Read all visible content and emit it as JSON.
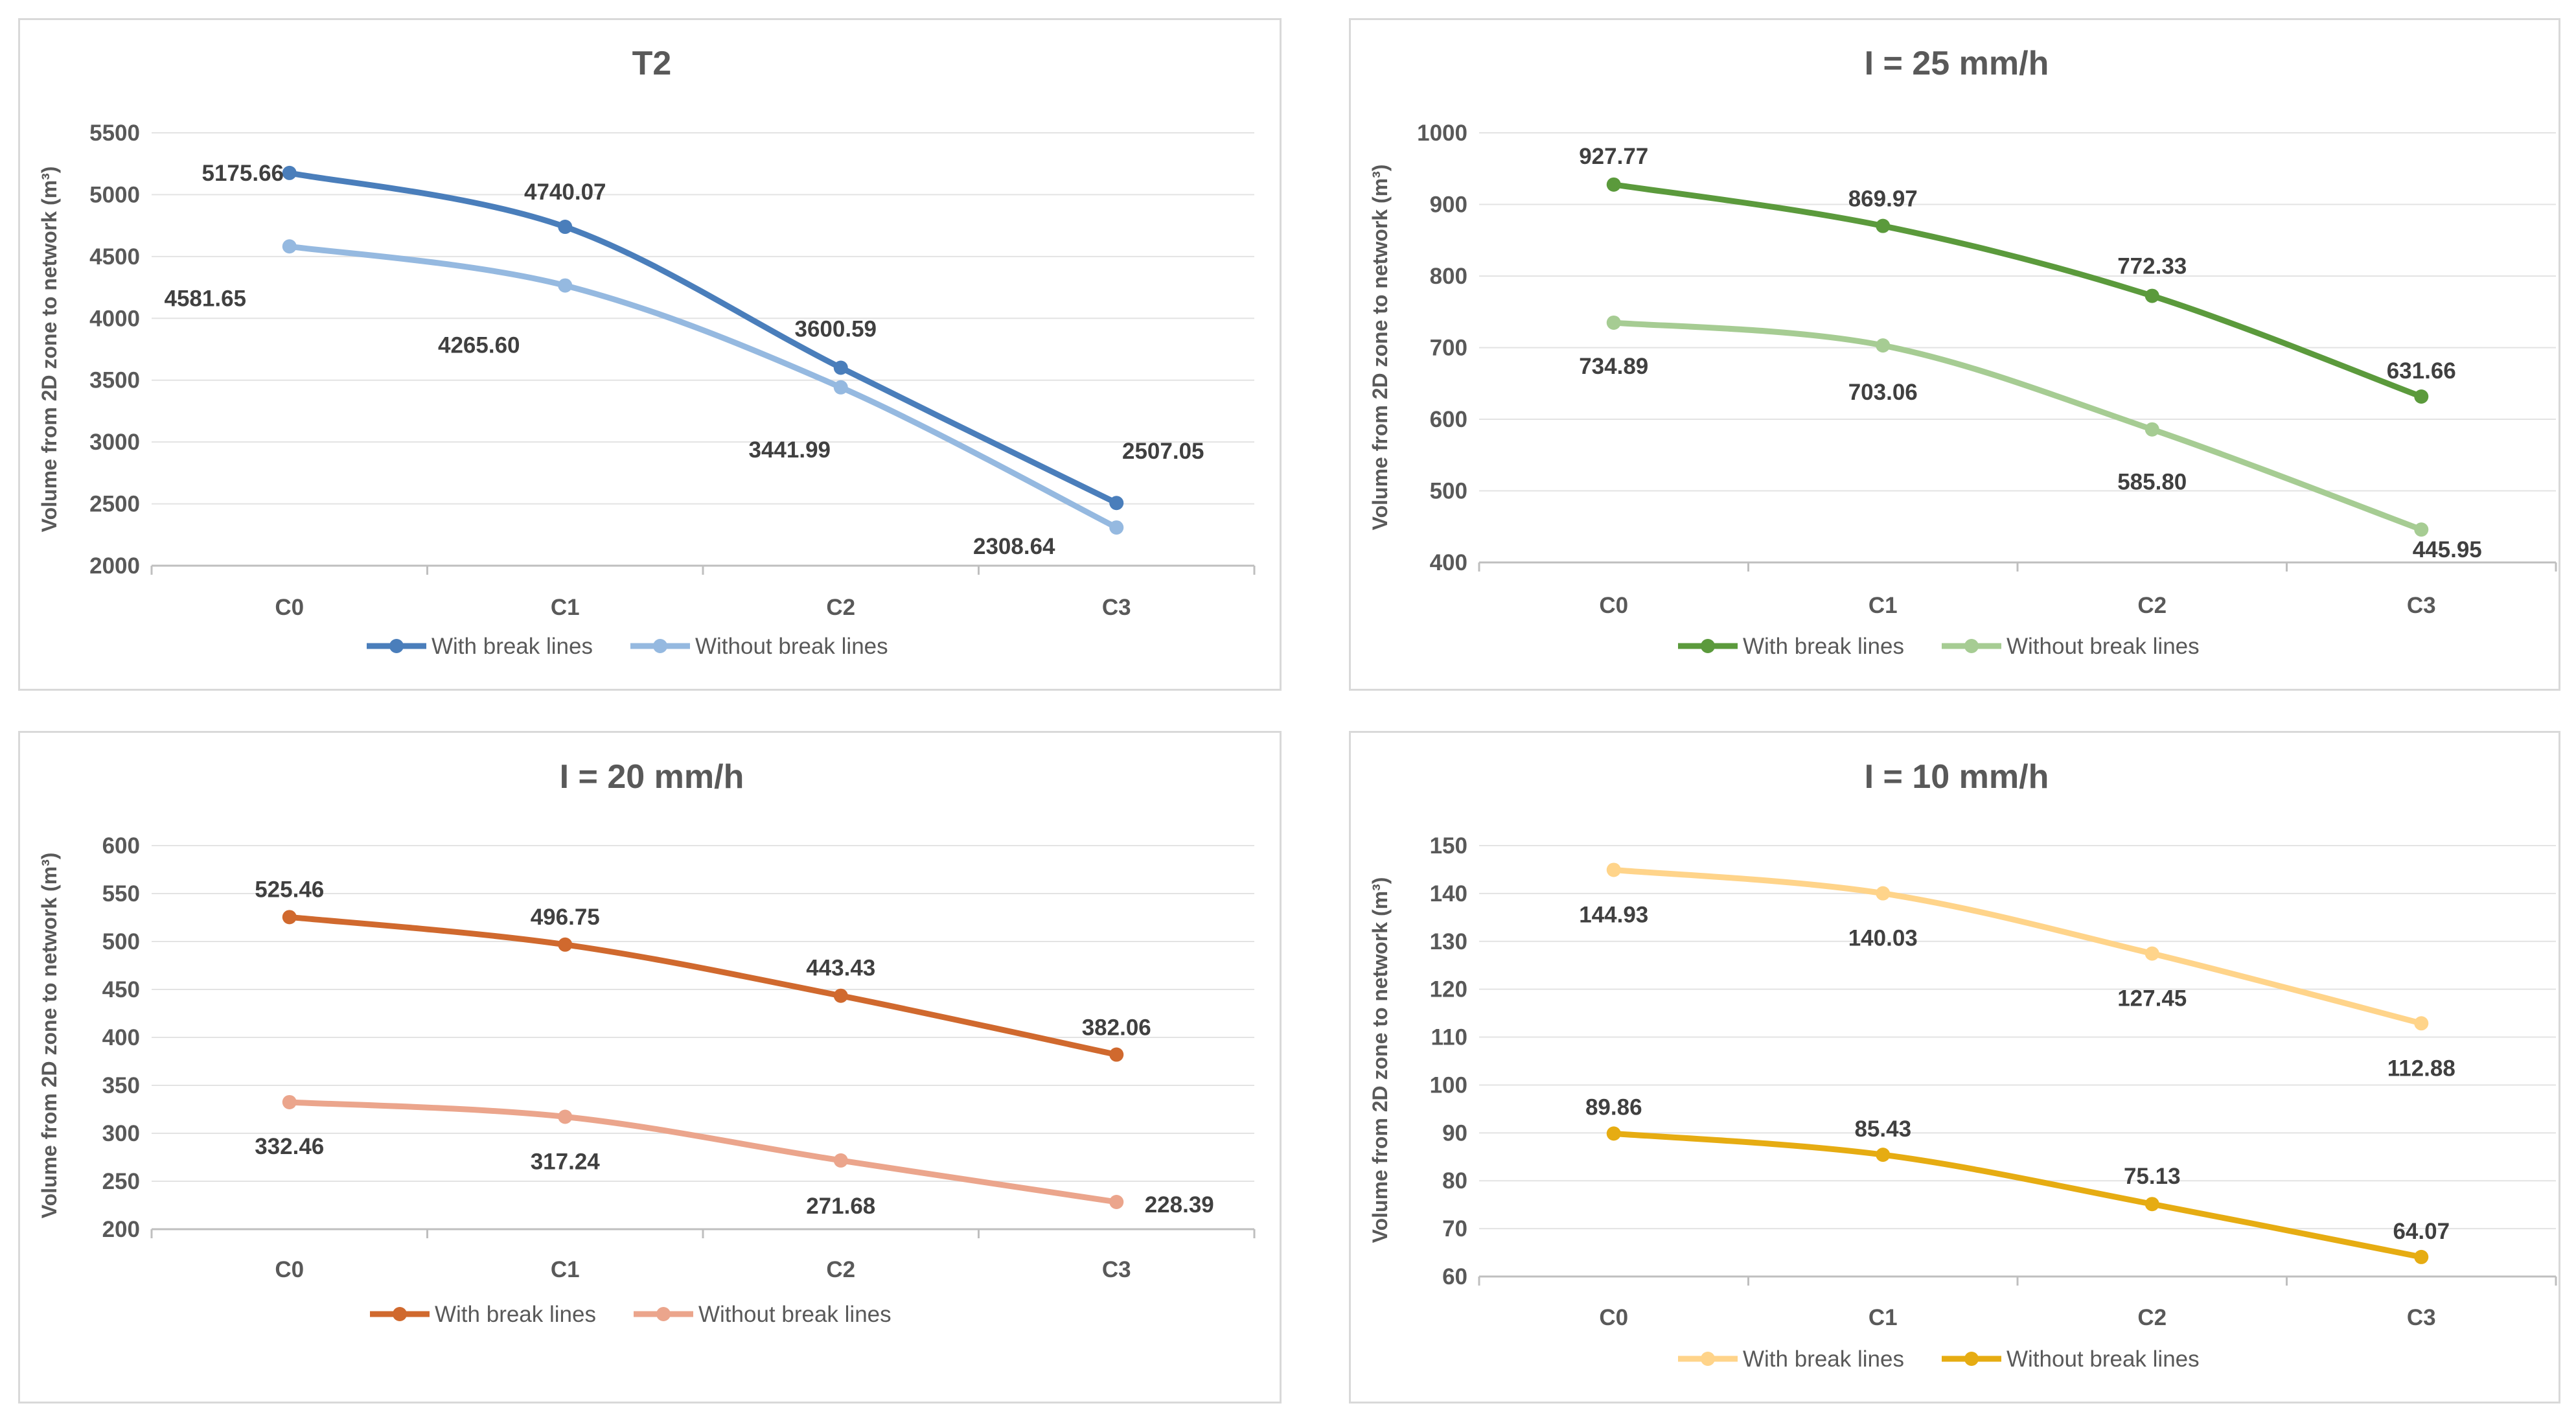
{
  "chart_data": [
    {
      "type": "line",
      "title": "T2",
      "xlabel": "",
      "ylabel": "Volume from 2D zone to network (m³)",
      "categories": [
        "C0",
        "C1",
        "C2",
        "C3"
      ],
      "ylim": [
        2000,
        5500
      ],
      "yticks": [
        2000,
        2500,
        3000,
        3500,
        4000,
        4500,
        5000,
        5500
      ],
      "grid": true,
      "legend": "bottom",
      "smooth": true,
      "series": [
        {
          "name": "With break lines",
          "color": "#4a7ebb",
          "values": [
            5175.66,
            4740.07,
            3600.59,
            2507.05
          ],
          "labels": [
            "5175.66",
            "4740.07",
            "3600.59",
            "2507.05"
          ]
        },
        {
          "name": "Without break lines",
          "color": "#95b9e0",
          "values": [
            4581.65,
            4265.6,
            3441.99,
            2308.64
          ],
          "labels": [
            "4581.65",
            "4265.60",
            "3441.99",
            "2308.64"
          ]
        }
      ]
    },
    {
      "type": "line",
      "title": "I = 25 mm/h",
      "xlabel": "",
      "ylabel": "Volume from 2D zone to network (m³)",
      "categories": [
        "C0",
        "C1",
        "C2",
        "C3"
      ],
      "ylim": [
        400,
        1000
      ],
      "yticks": [
        400,
        500,
        600,
        700,
        800,
        900,
        1000
      ],
      "grid": true,
      "legend": "bottom",
      "smooth": true,
      "series": [
        {
          "name": "With break lines",
          "color": "#5b9a3c",
          "values": [
            927.77,
            869.97,
            772.33,
            631.66
          ],
          "labels": [
            "927.77",
            "869.97",
            "772.33",
            "631.66"
          ]
        },
        {
          "name": "Without break lines",
          "color": "#a6cc93",
          "values": [
            734.89,
            703.06,
            585.8,
            445.95
          ],
          "labels": [
            "734.89",
            "703.06",
            "585.80",
            "445.95"
          ]
        }
      ]
    },
    {
      "type": "line",
      "title": "I = 20 mm/h",
      "xlabel": "",
      "ylabel": "Volume from 2D zone to network (m³)",
      "categories": [
        "C0",
        "C1",
        "C2",
        "C3"
      ],
      "ylim": [
        200,
        600
      ],
      "yticks": [
        200,
        250,
        300,
        350,
        400,
        450,
        500,
        550,
        600
      ],
      "grid": true,
      "legend": "bottom",
      "smooth": true,
      "series": [
        {
          "name": "With break lines",
          "color": "#d0692e",
          "values": [
            525.46,
            496.75,
            443.43,
            382.06
          ],
          "labels": [
            "525.46",
            "496.75",
            "443.43",
            "382.06"
          ]
        },
        {
          "name": "Without break lines",
          "color": "#eba58c",
          "values": [
            332.46,
            317.24,
            271.68,
            228.39
          ],
          "labels": [
            "332.46",
            "317.24",
            "271.68",
            "228.39"
          ]
        }
      ]
    },
    {
      "type": "line",
      "title": "I = 10 mm/h",
      "xlabel": "",
      "ylabel": "Volume from 2D zone to network (m³)",
      "categories": [
        "C0",
        "C1",
        "C2",
        "C3"
      ],
      "ylim": [
        60,
        150
      ],
      "yticks": [
        60,
        70,
        80,
        90,
        100,
        110,
        120,
        130,
        140,
        150
      ],
      "grid": true,
      "legend": "bottom",
      "smooth": true,
      "series": [
        {
          "name": "With break lines",
          "color": "#ffd48a",
          "values": [
            144.93,
            140.03,
            127.45,
            112.88
          ],
          "labels": [
            "144.93",
            "140.03",
            "127.45",
            "112.88"
          ]
        },
        {
          "name": "Without break lines",
          "color": "#e6ac12",
          "values": [
            89.86,
            85.43,
            75.13,
            64.07
          ],
          "labels": [
            "89.86",
            "85.43",
            "75.13",
            "64.07"
          ]
        }
      ]
    }
  ]
}
